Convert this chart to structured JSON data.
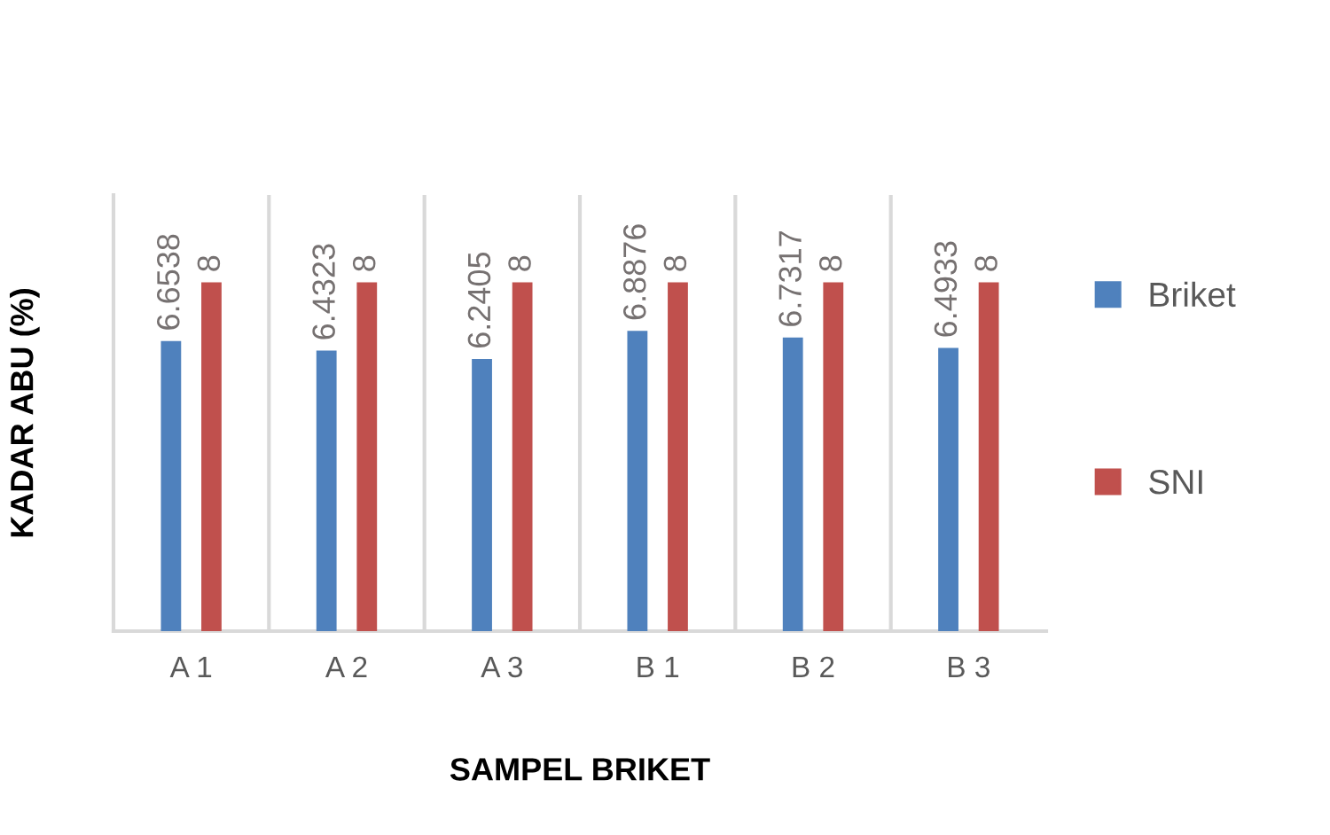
{
  "chart_data": {
    "type": "bar",
    "xlabel": "SAMPEL BRIKET",
    "ylabel": "KADAR ABU (%)",
    "categories": [
      "A 1",
      "A 2",
      "A 3",
      "B 1",
      "B 2",
      "B 3"
    ],
    "series": [
      {
        "name": "Briket",
        "color": "#4f81bd",
        "values": [
          6.6538,
          6.4323,
          6.2405,
          6.8876,
          6.7317,
          6.4933
        ]
      },
      {
        "name": "SNI",
        "color": "#c0504d",
        "values": [
          8,
          8,
          8,
          8,
          8,
          8
        ]
      }
    ],
    "ylim": [
      0,
      10
    ],
    "tick_labels": "x",
    "grid": "x",
    "legend": "right",
    "data_labels": true
  }
}
